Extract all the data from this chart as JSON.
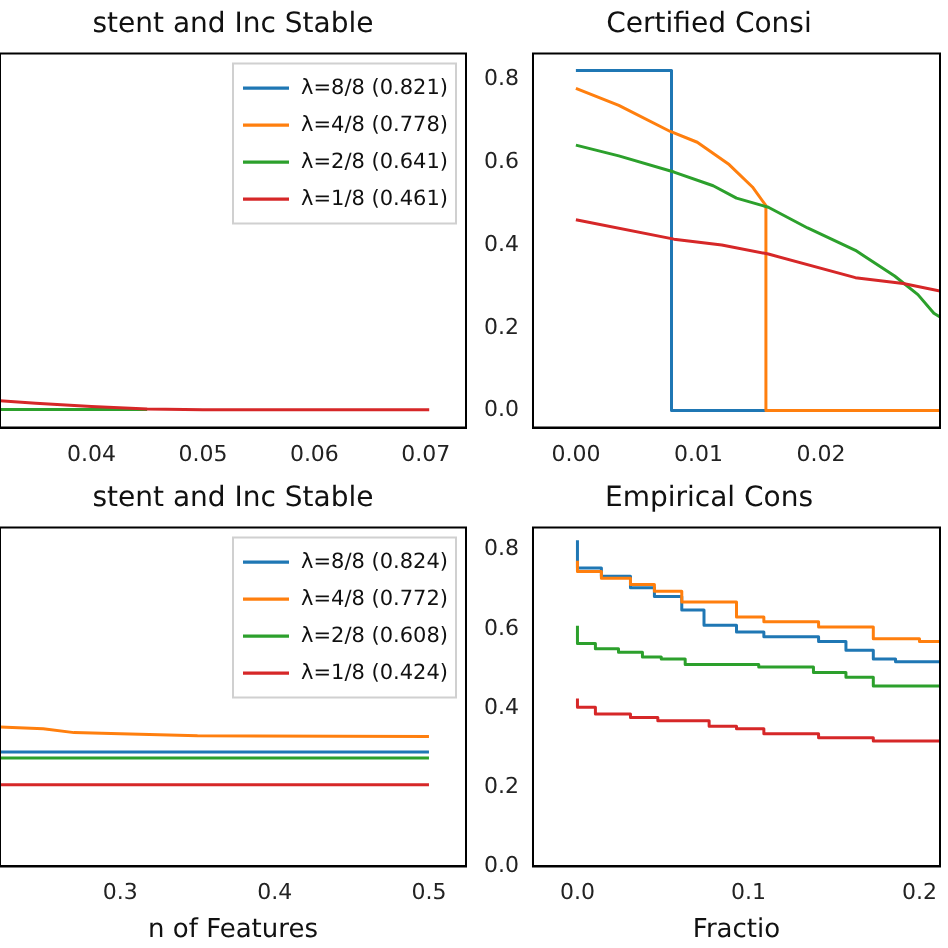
{
  "chart_data": [
    {
      "type": "line",
      "title": "stent and Inc Stable",
      "xlim": [
        0.0318,
        0.0736
      ],
      "xticks": [
        0.04,
        0.05,
        0.06,
        0.07
      ],
      "ylim": [
        -0.041,
        0.862
      ],
      "tick_labels": "x",
      "legend": "top right",
      "series": [
        {
          "name": "λ=8/8 (0.821)",
          "color": "#1f77b4"
        },
        {
          "name": "λ=4/8 (0.778)",
          "color": "#ff7f0e"
        },
        {
          "name": "λ=2/8 (0.641)",
          "color": "#2ca02c",
          "x": [
            0.0318,
            0.045
          ],
          "values": [
            0.003,
            0.003
          ]
        },
        {
          "name": "λ=1/8 (0.461)",
          "color": "#d62728",
          "x": [
            0.0318,
            0.035,
            0.04,
            0.045,
            0.05,
            0.0703
          ],
          "values": [
            0.024,
            0.018,
            0.01,
            0.004,
            0.002,
            0.002
          ]
        }
      ]
    },
    {
      "type": "line",
      "title": "Certified Consi",
      "xlim": [
        -0.0035,
        0.0297
      ],
      "xticks": [
        {
          "value": 0,
          "label": "0.00"
        },
        0.01,
        0.02
      ],
      "ylim": [
        -0.041,
        0.862
      ],
      "yticks": [
        {
          "value": 0,
          "label": "0.0"
        },
        0.2,
        0.4,
        0.6,
        0.8
      ],
      "series": [
        {
          "color": "#1f77b4",
          "x": [
            0,
            0.0078,
            0.0078,
            0.0297
          ],
          "values": [
            0.821,
            0.821,
            0,
            0
          ]
        },
        {
          "color": "#ff7f0e",
          "x": [
            0,
            0.0035,
            0.0077,
            0.0099,
            0.0125,
            0.0144,
            0.0155,
            0.0155,
            0.0297
          ],
          "values": [
            0.778,
            0.737,
            0.674,
            0.648,
            0.594,
            0.54,
            0.495,
            0,
            0
          ]
        },
        {
          "color": "#2ca02c",
          "x": [
            0,
            0.0035,
            0.008,
            0.0112,
            0.0131,
            0.0157,
            0.0189,
            0.0228,
            0.026,
            0.0279,
            0.0292,
            0.0297
          ],
          "values": [
            0.641,
            0.615,
            0.576,
            0.543,
            0.513,
            0.491,
            0.441,
            0.387,
            0.325,
            0.28,
            0.235,
            0.226
          ]
        },
        {
          "color": "#d62728",
          "x": [
            0,
            0.008,
            0.0119,
            0.0157,
            0.0228,
            0.0267,
            0.0297
          ],
          "values": [
            0.461,
            0.414,
            0.4,
            0.378,
            0.321,
            0.307,
            0.289
          ]
        }
      ]
    },
    {
      "type": "line",
      "title": "stent and Inc Stable",
      "xlabel": "n of Features",
      "xlim": [
        0.222,
        0.524
      ],
      "xticks": [
        0.3,
        0.4,
        0.5
      ],
      "ylim": [
        0,
        0.856
      ],
      "tick_labels": "x",
      "legend": "top right",
      "series": [
        {
          "name": "λ=8/8 (0.824)",
          "color": "#1f77b4",
          "x": [
            0.222,
            0.5
          ],
          "values": [
            0.289,
            0.289
          ]
        },
        {
          "name": "λ=4/8 (0.772)",
          "color": "#ff7f0e",
          "x": [
            0.222,
            0.25,
            0.27,
            0.3,
            0.35,
            0.5
          ],
          "values": [
            0.352,
            0.348,
            0.338,
            0.335,
            0.33,
            0.328
          ]
        },
        {
          "name": "λ=2/8 (0.608)",
          "color": "#2ca02c",
          "x": [
            0.222,
            0.5
          ],
          "values": [
            0.274,
            0.274
          ]
        },
        {
          "name": "λ=1/8 (0.424)",
          "color": "#d62728",
          "x": [
            0.222,
            0.5
          ],
          "values": [
            0.206,
            0.206
          ]
        }
      ]
    },
    {
      "type": "step",
      "title": "Empirical Cons",
      "xlabel": "Fractio",
      "xlim": [
        -0.026,
        0.212
      ],
      "xticks": [
        {
          "value": 0,
          "label": "0.0"
        },
        0.1,
        0.2
      ],
      "ylim": [
        0,
        0.856
      ],
      "yticks": [
        {
          "value": 0,
          "label": "0.0"
        },
        0.2,
        0.4,
        0.6,
        0.8
      ],
      "series": [
        {
          "color": "#1f77b4",
          "x": [
            0,
            0,
            0.014,
            0.031,
            0.045,
            0.061,
            0.074,
            0.093,
            0.109,
            0.141,
            0.157,
            0.173,
            0.186,
            0.2,
            0.212
          ],
          "values": [
            0.824,
            0.8,
            0.754,
            0.733,
            0.704,
            0.682,
            0.648,
            0.609,
            0.592,
            0.58,
            0.568,
            0.546,
            0.524,
            0.517,
            0.517
          ]
        },
        {
          "color": "#ff7f0e",
          "x": [
            0,
            0,
            0.014,
            0.031,
            0.045,
            0.061,
            0.093,
            0.109,
            0.141,
            0.173,
            0.2,
            0.212
          ],
          "values": [
            0.772,
            0.758,
            0.745,
            0.728,
            0.712,
            0.695,
            0.668,
            0.63,
            0.618,
            0.605,
            0.575,
            0.568
          ]
        },
        {
          "color": "#2ca02c",
          "x": [
            0,
            0,
            0.0105,
            0.024,
            0.038,
            0.049,
            0.063,
            0.106,
            0.138,
            0.157,
            0.173,
            0.198,
            0.212
          ],
          "values": [
            0.608,
            0.58,
            0.563,
            0.55,
            0.541,
            0.529,
            0.524,
            0.51,
            0.504,
            0.49,
            0.478,
            0.456,
            0.456
          ]
        },
        {
          "color": "#d62728",
          "x": [
            0,
            0,
            0.0105,
            0.031,
            0.047,
            0.077,
            0.093,
            0.109,
            0.141,
            0.173,
            0.198,
            0.212
          ],
          "values": [
            0.424,
            0.415,
            0.402,
            0.385,
            0.376,
            0.368,
            0.354,
            0.348,
            0.335,
            0.325,
            0.317,
            0.317
          ]
        }
      ]
    }
  ]
}
